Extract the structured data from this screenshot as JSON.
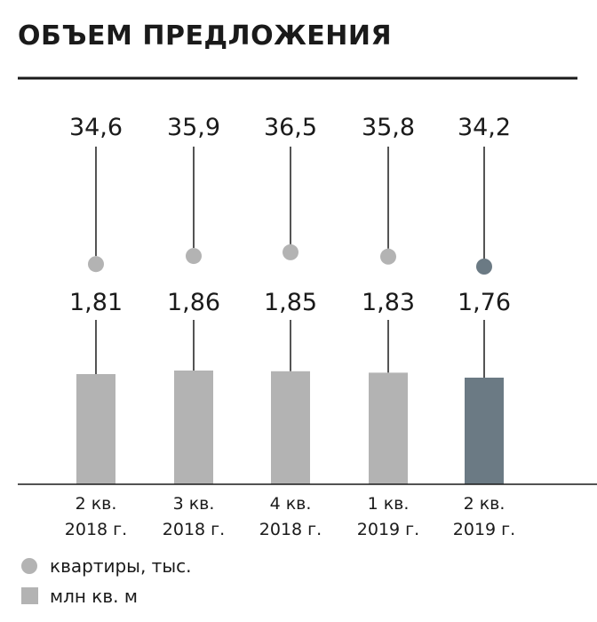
{
  "chart_data": {
    "type": "bar",
    "title": "ОБЪЕМ ПРЕДЛОЖЕНИЯ",
    "categories": [
      [
        "2 кв.",
        "2018 г."
      ],
      [
        "3 кв.",
        "2018 г."
      ],
      [
        "4 кв.",
        "2018 г."
      ],
      [
        "1 кв.",
        "2019 г."
      ],
      [
        "2 кв.",
        "2019 г."
      ]
    ],
    "series": [
      {
        "name": "квартиры, тыс.",
        "kind": "dot",
        "values": [
          34.6,
          35.9,
          36.5,
          35.8,
          34.2
        ],
        "labels": [
          "34,6",
          "35,9",
          "36,5",
          "35,8",
          "34,2"
        ]
      },
      {
        "name": "млн кв. м",
        "kind": "bar",
        "values": [
          1.81,
          1.86,
          1.85,
          1.83,
          1.76
        ],
        "labels": [
          "1,81",
          "1,86",
          "1,85",
          "1,83",
          "1,76"
        ]
      }
    ],
    "highlight_index": 4,
    "colors": {
      "base": "#b3b3b3",
      "highlight": "#6b7a84",
      "text": "#1a1a1a"
    },
    "legend_placement": "bottom-left",
    "grid": false
  }
}
